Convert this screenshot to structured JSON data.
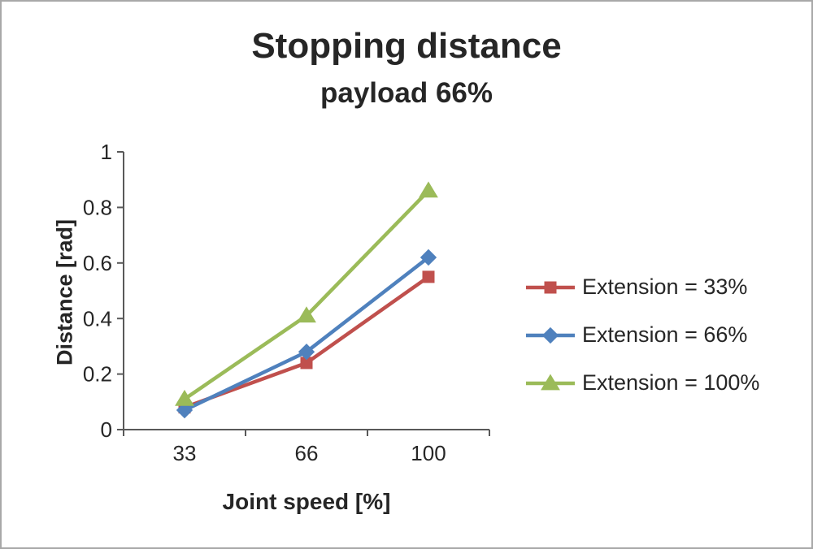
{
  "chart_data": {
    "type": "line",
    "title": "Stopping distance",
    "subtitle": "payload 66%",
    "xlabel": "Joint speed [%]",
    "ylabel": "Distance [rad]",
    "categories": [
      "33",
      "66",
      "100"
    ],
    "series": [
      {
        "name": "Extension = 33%",
        "color": "#C0504D",
        "marker": "square",
        "values": [
          0.08,
          0.24,
          0.55
        ]
      },
      {
        "name": "Extension = 66%",
        "color": "#4F81BD",
        "marker": "diamond",
        "values": [
          0.07,
          0.28,
          0.62
        ]
      },
      {
        "name": "Extension = 100%",
        "color": "#9BBB59",
        "marker": "triangle",
        "values": [
          0.11,
          0.41,
          0.86
        ]
      }
    ],
    "ylim": [
      0,
      1
    ],
    "yticks": [
      0,
      0.2,
      0.4,
      0.6,
      0.8,
      1
    ],
    "axis_color": "#595959",
    "legend_position": "right",
    "grid": false
  }
}
